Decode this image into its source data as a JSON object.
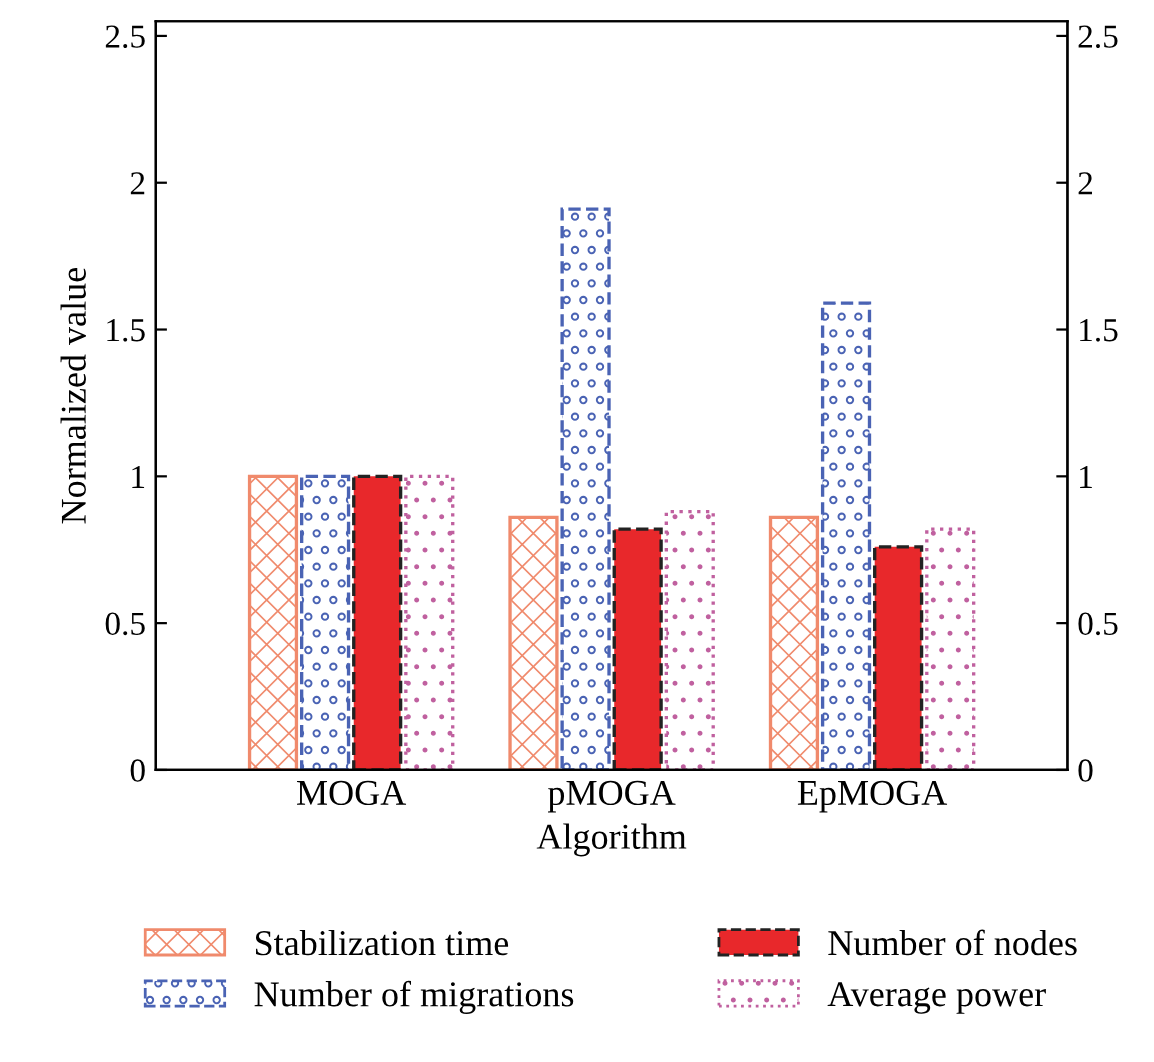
{
  "chart_data": {
    "type": "bar",
    "xlabel": "Algorithm",
    "ylabel": "Normalized value",
    "categories": [
      "MOGA",
      "pMOGA",
      "EpMOGA"
    ],
    "series": [
      {
        "name": "Stabilization time",
        "color": "#f08a6c",
        "values": [
          1.0,
          0.86,
          0.86
        ]
      },
      {
        "name": "Number of migrations",
        "color": "#4a63b4",
        "values": [
          1.0,
          1.91,
          1.59
        ]
      },
      {
        "name": "Number of nodes",
        "color": "#e8282b",
        "values": [
          1.0,
          0.82,
          0.76
        ]
      },
      {
        "name": "Average power",
        "color": "#c0609f",
        "values": [
          1.0,
          0.88,
          0.82
        ]
      }
    ],
    "ylim": [
      0,
      2.55
    ],
    "yticks": [
      0,
      0.5,
      1,
      1.5,
      2,
      2.5
    ],
    "y2lim": [
      0,
      2.55
    ],
    "y2ticks": [
      0,
      0.5,
      1,
      1.5,
      2,
      2.5
    ],
    "grid": false,
    "legend": "bottom"
  }
}
